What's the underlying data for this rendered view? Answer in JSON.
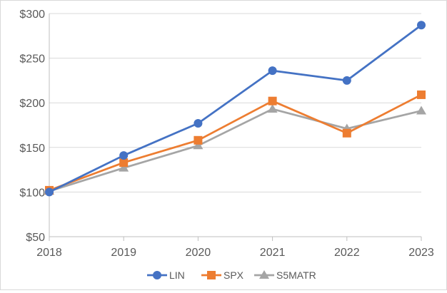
{
  "chart_data": {
    "type": "line",
    "title": "",
    "xlabel": "",
    "ylabel": "",
    "categories": [
      "2018",
      "2019",
      "2020",
      "2021",
      "2022",
      "2023"
    ],
    "ylim": [
      50,
      300
    ],
    "yticks": [
      50,
      100,
      150,
      200,
      250,
      300
    ],
    "ytick_labels": [
      "$50",
      "$100",
      "$150",
      "$200",
      "$250",
      "$300"
    ],
    "grid": "horizontal",
    "legend_position": "bottom",
    "series": [
      {
        "name": "LIN",
        "values": [
          100,
          141,
          177,
          236,
          225,
          287
        ],
        "color": "#4472c4",
        "marker": "circle"
      },
      {
        "name": "SPX",
        "values": [
          102,
          133,
          158,
          202,
          166,
          209
        ],
        "color": "#ed7d31",
        "marker": "square"
      },
      {
        "name": "S5MATR",
        "values": [
          101,
          127,
          152,
          193,
          171,
          191
        ],
        "color": "#a5a5a5",
        "marker": "triangle"
      }
    ]
  }
}
